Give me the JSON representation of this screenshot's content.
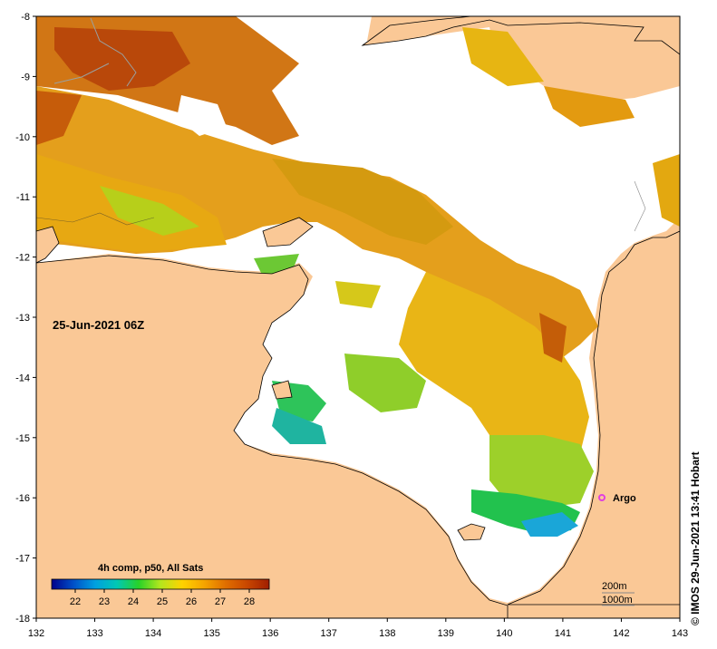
{
  "map": {
    "date_label": "25-Jun-2021 06Z",
    "x_ticks": [
      "132",
      "133",
      "134",
      "135",
      "136",
      "137",
      "138",
      "139",
      "140",
      "141",
      "142",
      "143"
    ],
    "y_ticks": [
      "-8",
      "-9",
      "-10",
      "-11",
      "-12",
      "-13",
      "-14",
      "-15",
      "-16",
      "-17",
      "-18"
    ],
    "marker_label": "Argo",
    "contour_200": "200m",
    "contour_1000": "1000m",
    "credit": "©  IMOS 29-Jun-2021 13:41 Hobart",
    "colors": {
      "land": "#FAC896",
      "no_data": "#FFFFFF",
      "marker": "#E040E0"
    }
  },
  "legend": {
    "title": "4h comp, p50, All Sats",
    "ticks": [
      "22",
      "23",
      "24",
      "25",
      "26",
      "27",
      "28"
    ],
    "gradient": [
      "#00008B",
      "#0050C8",
      "#00A0E0",
      "#00C8B4",
      "#28D228",
      "#B4E61E",
      "#FFD200",
      "#F5A500",
      "#E06E00",
      "#C84600",
      "#A01E00"
    ]
  }
}
